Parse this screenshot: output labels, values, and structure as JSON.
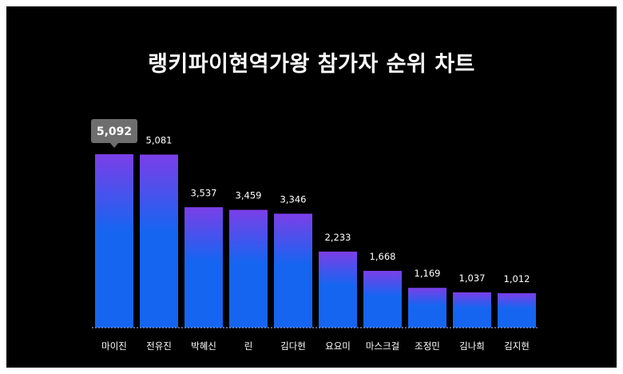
{
  "chart_data": {
    "type": "bar",
    "title": "랭키파이현역가왕 참가자 순위 차트",
    "categories": [
      "마이진",
      "전유진",
      "박혜신",
      "린",
      "김다현",
      "요요미",
      "마스크걸",
      "조정민",
      "김나희",
      "김지현"
    ],
    "values": [
      5092,
      5081,
      3537,
      3459,
      3346,
      2233,
      1668,
      1169,
      1037,
      1012
    ],
    "value_labels": [
      "5,092",
      "5,081",
      "3,537",
      "3,459",
      "3,346",
      "2,233",
      "1,668",
      "1,169",
      "1,037",
      "1,012"
    ],
    "highlight_index": 0,
    "ylim": [
      0,
      5092
    ],
    "grid": false,
    "legend": "none",
    "colors": {
      "background": "#000000",
      "bar_top": "#7b3fe8",
      "bar_bottom": "#1565f0",
      "baseline": "#8899cc",
      "tooltip": "#6e6e6e",
      "text": "#ffffff"
    }
  }
}
